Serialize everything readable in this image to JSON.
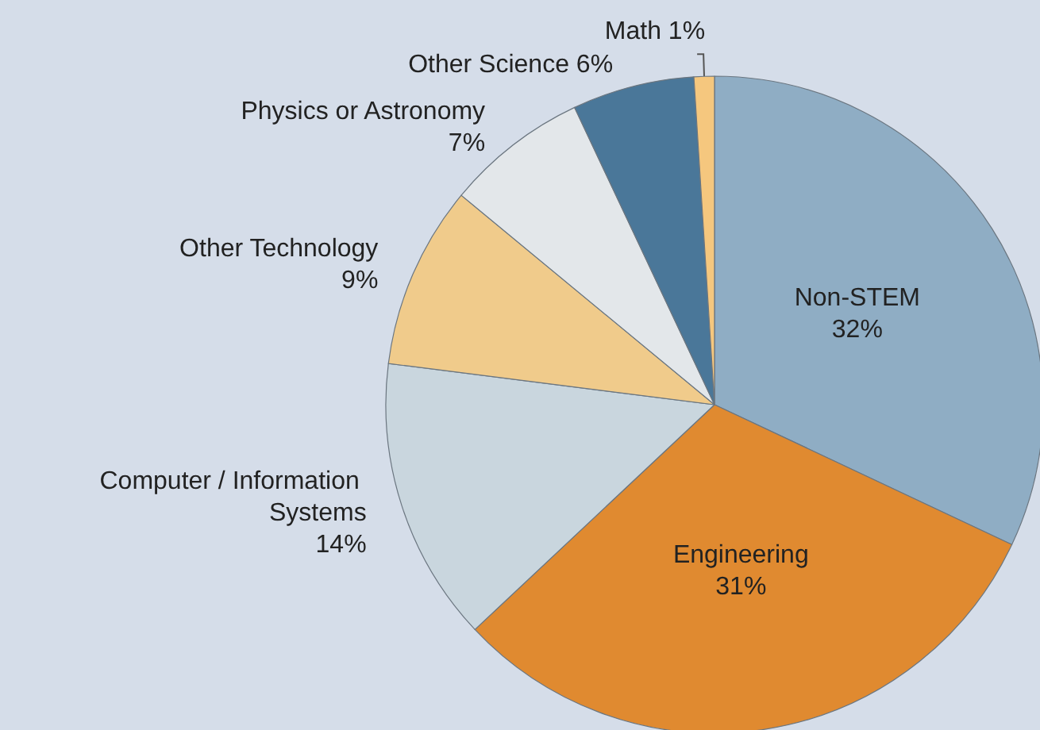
{
  "chart_data": {
    "type": "pie",
    "categories": [
      "Non-STEM",
      "Engineering",
      "Computer / Information Systems",
      "Other Technology",
      "Physics or Astronomy",
      "Other Science",
      "Math"
    ],
    "values": [
      32,
      31,
      14,
      9,
      7,
      6,
      1
    ],
    "value_labels": [
      "32%",
      "31%",
      "14%",
      "9%",
      "7%",
      "6%",
      "1%"
    ],
    "colors": [
      "#8fadc4",
      "#e08a30",
      "#c9d6de",
      "#f0cb8b",
      "#e3e7ea",
      "#4a7799",
      "#f5c77e"
    ]
  }
}
